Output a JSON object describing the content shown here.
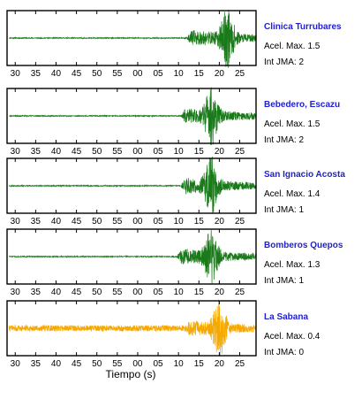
{
  "chart_data": {
    "type": "line",
    "xlabel": "Tiempo (s)",
    "tick_labels": [
      "30",
      "35",
      "40",
      "45",
      "50",
      "55",
      "00",
      "05",
      "10",
      "15",
      "20",
      "25"
    ],
    "stations": [
      {
        "name": "Clinica Turrubares",
        "accel_label": "Acel. Max. 1.5",
        "jma_label": "Int JMA: 2",
        "color": "#1a7a1a",
        "onset": 12,
        "peak_time": 22,
        "peak_amp": 1.0,
        "noise": 0.02,
        "seed": 11
      },
      {
        "name": "Bebedero, Escazu",
        "accel_label": "Acel. Max. 1.5",
        "jma_label": "Int JMA: 2",
        "color": "#1a7a1a",
        "onset": 10.5,
        "peak_time": 18,
        "peak_amp": 1.0,
        "noise": 0.02,
        "seed": 23
      },
      {
        "name": "San Ignacio Acosta",
        "accel_label": "Acel. Max. 1.4",
        "jma_label": "Int JMA: 1",
        "color": "#1a7a1a",
        "onset": 10.5,
        "peak_time": 18,
        "peak_amp": 0.95,
        "noise": 0.02,
        "seed": 37
      },
      {
        "name": "Bomberos Quepos",
        "accel_label": "Acel. Max. 1.3",
        "jma_label": "Int JMA: 1",
        "color": "#1a7a1a",
        "onset": 9.5,
        "peak_time": 18,
        "peak_amp": 0.9,
        "noise": 0.02,
        "seed": 51
      },
      {
        "name": "La Sabana",
        "accel_label": "Acel. Max. 0.4",
        "jma_label": "Int JMA: 0",
        "color": "#f5a800",
        "onset": 11.5,
        "peak_time": 20,
        "peak_amp": 0.95,
        "noise": 0.12,
        "seed": 73
      }
    ]
  }
}
